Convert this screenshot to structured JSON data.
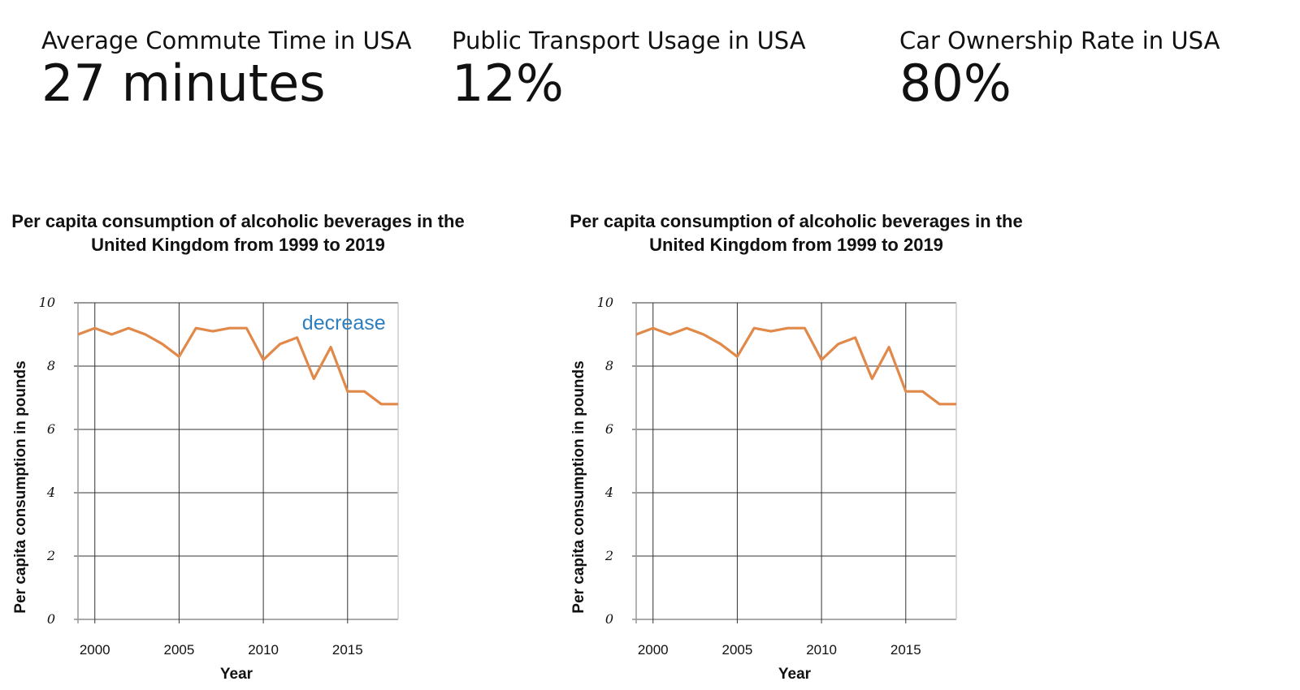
{
  "kpis": [
    {
      "label": "Average Commute Time in USA",
      "value": "27 minutes"
    },
    {
      "label": "Public Transport Usage in USA",
      "value": "12%"
    },
    {
      "label": "Car Ownership Rate in USA",
      "value": "80%"
    }
  ],
  "chart_data": [
    {
      "type": "line",
      "title": "Per capita consumption of alcoholic beverages in the United Kingdom from 1999 to 2019",
      "xlabel": "Year",
      "ylabel": "Per capita consumption in pounds",
      "x": [
        1999,
        2000,
        2001,
        2002,
        2003,
        2004,
        2005,
        2006,
        2007,
        2008,
        2009,
        2010,
        2011,
        2012,
        2013,
        2014,
        2015,
        2016,
        2017,
        2018,
        2019
      ],
      "series": [
        {
          "values": [
            9.0,
            9.2,
            9.0,
            9.2,
            9.0,
            8.7,
            8.3,
            9.2,
            9.1,
            9.2,
            9.2,
            8.2,
            8.7,
            8.9,
            7.6,
            8.6,
            7.2,
            7.2,
            6.8,
            6.8,
            6.8
          ],
          "color": "#e0894a"
        }
      ],
      "xlim": [
        1999,
        2018
      ],
      "ylim": [
        0,
        10
      ],
      "xticks": [
        "2000",
        "2005",
        "2010",
        "2015"
      ],
      "yticks": [
        "0",
        "2",
        "4",
        "6",
        "8",
        "10"
      ],
      "annotation": "decrease",
      "grid": true
    },
    {
      "type": "line",
      "title": "Per capita consumption of alcoholic beverages in the United Kingdom from 1999 to 2019",
      "xlabel": "Year",
      "ylabel": "Per capita consumption in pounds",
      "x": [
        1999,
        2000,
        2001,
        2002,
        2003,
        2004,
        2005,
        2006,
        2007,
        2008,
        2009,
        2010,
        2011,
        2012,
        2013,
        2014,
        2015,
        2016,
        2017,
        2018,
        2019
      ],
      "series": [
        {
          "values": [
            9.0,
            9.2,
            9.0,
            9.2,
            9.0,
            8.7,
            8.3,
            9.2,
            9.1,
            9.2,
            9.2,
            8.2,
            8.7,
            8.9,
            7.6,
            8.6,
            7.2,
            7.2,
            6.8,
            6.8,
            6.8
          ],
          "color": "#e0894a"
        }
      ],
      "xlim": [
        1999,
        2018
      ],
      "ylim": [
        0,
        10
      ],
      "xticks": [
        "2000",
        "2005",
        "2010",
        "2015"
      ],
      "yticks": [
        "0",
        "2",
        "4",
        "6",
        "8",
        "10"
      ],
      "grid": true
    }
  ]
}
